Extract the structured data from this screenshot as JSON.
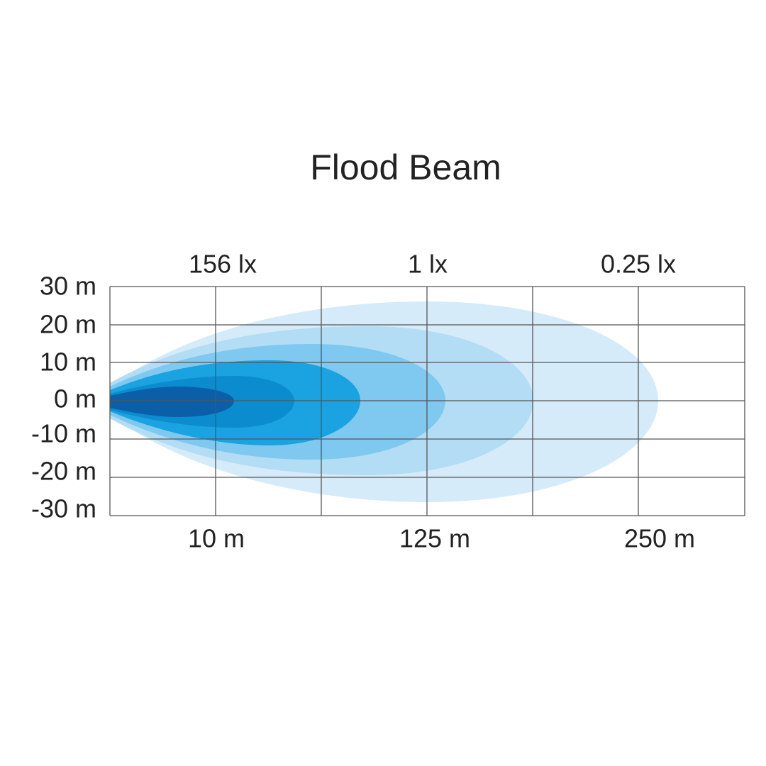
{
  "title": "Flood Beam",
  "lux_labels": [
    "156 lx",
    "1 lx",
    "0.25 lx"
  ],
  "y_labels": [
    "30 m",
    "20 m",
    "10 m",
    "0 m",
    "-10 m",
    "-20 m",
    "-30 m"
  ],
  "x_labels": [
    "10 m",
    "125 m",
    "250 m"
  ]
}
